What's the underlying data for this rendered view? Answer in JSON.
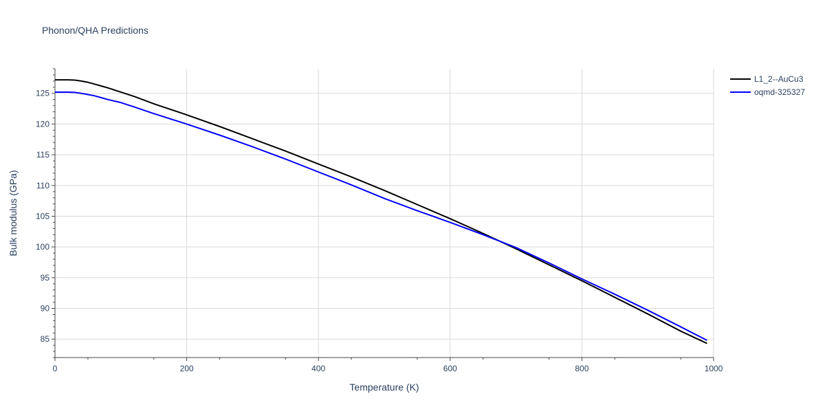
{
  "chart_data": {
    "type": "line",
    "title": "Phonon/QHA Predictions",
    "xlabel": "Temperature (K)",
    "ylabel": "Bulk modulus (GPa)",
    "xlim": [
      0,
      1000
    ],
    "ylim": [
      82,
      129
    ],
    "x_ticks": [
      0,
      200,
      400,
      600,
      800,
      1000
    ],
    "y_ticks": [
      85,
      90,
      95,
      100,
      105,
      110,
      115,
      120,
      125
    ],
    "grid": true,
    "legend_position": "top-right",
    "series": [
      {
        "name": "L1_2--AuCu3",
        "color": "#000000",
        "x": [
          0,
          10,
          20,
          30,
          40,
          50,
          60,
          70,
          80,
          100,
          120,
          150,
          200,
          250,
          300,
          350,
          400,
          450,
          500,
          550,
          600,
          650,
          700,
          750,
          800,
          850,
          900,
          950,
          990
        ],
        "y": [
          127.2,
          127.2,
          127.2,
          127.15,
          127.0,
          126.8,
          126.5,
          126.2,
          125.9,
          125.2,
          124.5,
          123.3,
          121.5,
          119.6,
          117.6,
          115.6,
          113.5,
          111.4,
          109.2,
          106.9,
          104.6,
          102.2,
          99.7,
          97.1,
          94.5,
          91.8,
          89.1,
          86.3,
          84.3
        ]
      },
      {
        "name": "oqmd-325327",
        "color": "#0000ff",
        "x": [
          0,
          10,
          20,
          30,
          40,
          50,
          60,
          70,
          80,
          100,
          120,
          150,
          200,
          250,
          300,
          350,
          400,
          450,
          500,
          550,
          600,
          650,
          700,
          750,
          800,
          850,
          900,
          950,
          990
        ],
        "y": [
          125.2,
          125.2,
          125.2,
          125.15,
          125.0,
          124.8,
          124.6,
          124.3,
          124.0,
          123.5,
          122.8,
          121.7,
          120.0,
          118.2,
          116.3,
          114.3,
          112.2,
          110.1,
          107.9,
          105.9,
          104.0,
          102.0,
          99.9,
          97.4,
          94.8,
          92.3,
          89.7,
          87.0,
          84.8
        ]
      }
    ]
  }
}
